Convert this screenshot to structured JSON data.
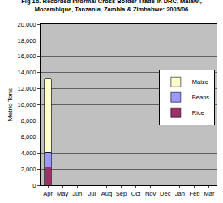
{
  "chart_data": {
    "type": "bar",
    "title": "Fig 1b. Recorded Informal Cross Border Trade In DRC, Malawi, Mozambique, Tanzania, Zambia & Zimbabwe: 2005/06",
    "y_label": "Metric Tons",
    "categories": [
      "Apr",
      "May",
      "Jun",
      "Jul",
      "Aug",
      "Sep",
      "Oct",
      "Nov",
      "Dec",
      "Jan",
      "Feb",
      "Mar"
    ],
    "stacked": true,
    "series": [
      {
        "name": "Rice",
        "color": "#993366",
        "values": [
          2300,
          null,
          null,
          null,
          null,
          null,
          null,
          null,
          null,
          null,
          null,
          null
        ]
      },
      {
        "name": "Beans",
        "color": "#9999ff",
        "values": [
          1800,
          null,
          null,
          null,
          null,
          null,
          null,
          null,
          null,
          null,
          null,
          null
        ]
      },
      {
        "name": "Maize",
        "color": "#ffffcc",
        "values": [
          9100,
          null,
          null,
          null,
          null,
          null,
          null,
          null,
          null,
          null,
          null,
          null
        ]
      }
    ],
    "ylim": [
      0,
      20000
    ],
    "yticks": [
      0,
      {
        "value": 2000,
        "label": "2,000"
      },
      {
        "value": 4000,
        "label": "4,000"
      },
      {
        "value": 6000,
        "label": "6,000"
      },
      {
        "value": 8000,
        "label": "8,000"
      },
      {
        "value": 10000,
        "label": "10,000"
      },
      {
        "value": 12000,
        "label": "12,000"
      },
      {
        "value": 14000,
        "label": "14,000"
      },
      {
        "value": 16000,
        "label": "16,000"
      },
      {
        "value": 18000,
        "label": "18,000"
      },
      {
        "value": 20000,
        "label": "20,000"
      }
    ],
    "grid": true,
    "legend": "right"
  }
}
